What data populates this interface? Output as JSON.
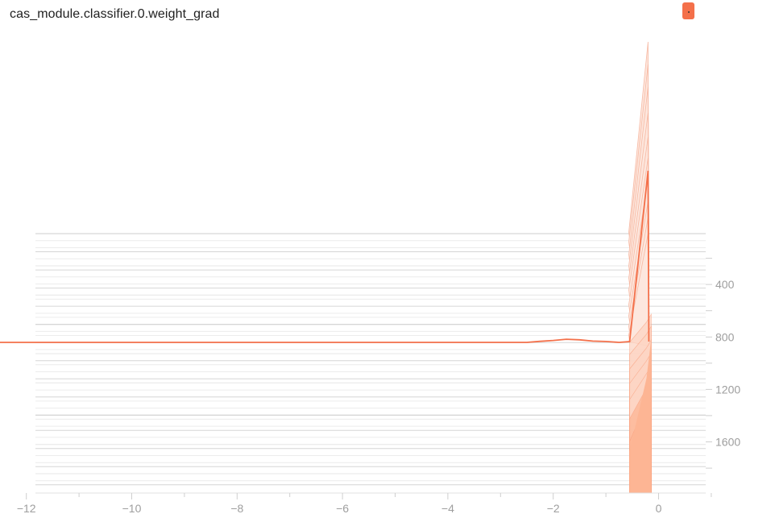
{
  "header": {
    "title": "cas_module.classifier.0.weight_grad"
  },
  "colors": {
    "accent": "#f4704a",
    "fill_light": "#fdb594",
    "fill_mid": "#fbd3c2",
    "axis_text": "#9e9e9e",
    "baseline": "#e0e0e0"
  },
  "chart_data": {
    "type": "area",
    "chart_style": "offset-histogram",
    "x_ticks": [
      -12,
      -10,
      -8,
      -6,
      -4,
      -2,
      0
    ],
    "y_ticks": [
      400,
      800,
      1200,
      1600
    ],
    "xlim": [
      -13,
      1
    ],
    "ylim": [
      0,
      1990
    ],
    "series": [
      {
        "step": 0,
        "points": [
          [
            -12.5,
            0
          ],
          [
            -0.55,
            0
          ],
          [
            -0.2,
            0
          ],
          [
            0.2,
            0
          ]
        ]
      }
    ],
    "legend": "none",
    "grid": false
  }
}
